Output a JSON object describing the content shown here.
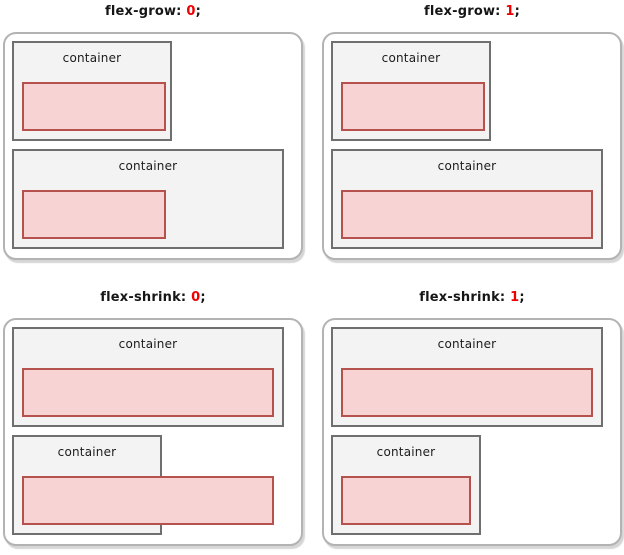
{
  "colors": {
    "title_value_red": "#ee0000",
    "panel_border": "#b3b3b3",
    "container_border": "#6f6f6f",
    "container_bg": "#f4f3f3",
    "item_border": "#b5524e",
    "item_bg": "#f7d3d3"
  },
  "figures": [
    {
      "id": "flex-grow-0",
      "title_property": "flex-grow:",
      "title_value": "0",
      "title_suffix": ";",
      "containers": [
        {
          "label": "container"
        },
        {
          "label": "container"
        }
      ]
    },
    {
      "id": "flex-grow-1",
      "title_property": "flex-grow:",
      "title_value": "1",
      "title_suffix": ";",
      "containers": [
        {
          "label": "container"
        },
        {
          "label": "container"
        }
      ]
    },
    {
      "id": "flex-shrink-0",
      "title_property": "flex-shrink:",
      "title_value": "0",
      "title_suffix": ";",
      "containers": [
        {
          "label": "container"
        },
        {
          "label": "container"
        }
      ]
    },
    {
      "id": "flex-shrink-1",
      "title_property": "flex-shrink:",
      "title_value": "1",
      "title_suffix": ";",
      "containers": [
        {
          "label": "container"
        },
        {
          "label": "container"
        }
      ]
    }
  ]
}
